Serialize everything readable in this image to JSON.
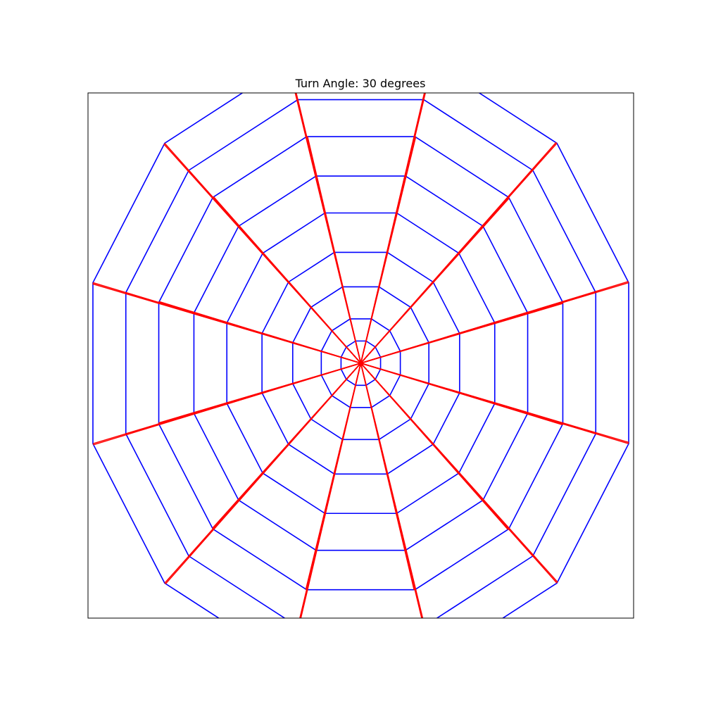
{
  "chart_data": {
    "type": "line",
    "title": "Turn Angle: 30 degrees",
    "xlabel": "",
    "ylabel": "",
    "xlim": [
      -6.0,
      6.0
    ],
    "ylim": [
      -5.0,
      5.3
    ],
    "grid": false,
    "axis_ticks": false,
    "line_colors": {
      "web": "#0000ff",
      "spokes": "#ff0000"
    },
    "center": [
      0,
      0
    ],
    "turn_angle_degrees": 30,
    "spoke_vertices": 12,
    "ring_radii": [
      0.45,
      0.9,
      1.55,
      2.25,
      3.05,
      3.8,
      4.6,
      5.35,
      6.1
    ],
    "ring_phase_degrees": -15
  }
}
